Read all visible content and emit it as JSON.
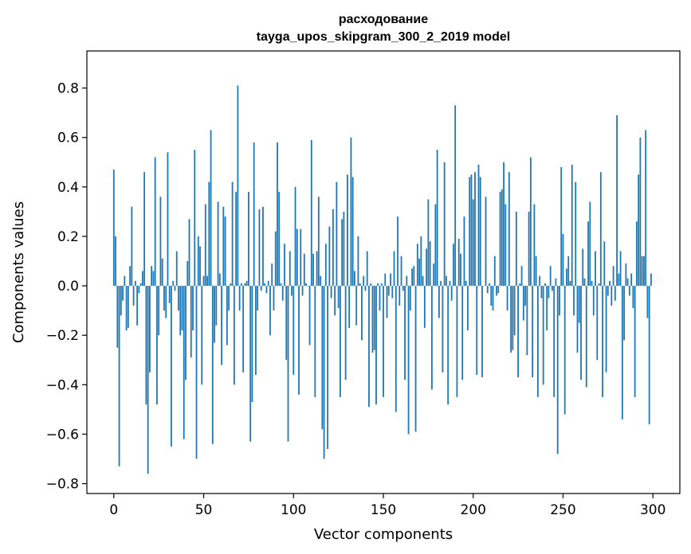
{
  "chart_data": {
    "type": "bar",
    "title_lines": [
      "расходование",
      "tayga_upos_skipgram_300_2_2019 model"
    ],
    "xlabel": "Vector components",
    "ylabel": "Components values",
    "xlim": [
      -15,
      315
    ],
    "ylim": [
      -0.84,
      0.95
    ],
    "x_ticks": [
      0,
      50,
      100,
      150,
      200,
      250,
      300
    ],
    "x_tick_labels": [
      "0",
      "50",
      "100",
      "150",
      "200",
      "250",
      "300"
    ],
    "y_ticks": [
      -0.8,
      -0.6,
      -0.4,
      -0.2,
      0.0,
      0.2,
      0.4,
      0.6,
      0.8
    ],
    "y_tick_labels": [
      "−0.8",
      "−0.6",
      "−0.4",
      "−0.2",
      "0.0",
      "0.2",
      "0.4",
      "0.6",
      "0.8"
    ],
    "bar_color": "#1f77b4",
    "grid": false,
    "values": [
      0.47,
      0.2,
      -0.25,
      -0.73,
      -0.12,
      -0.06,
      0.04,
      -0.18,
      -0.17,
      0.08,
      0.32,
      -0.08,
      0.02,
      -0.16,
      -0.03,
      0.01,
      0.06,
      0.46,
      -0.48,
      -0.76,
      -0.35,
      0.08,
      0.06,
      0.52,
      -0.48,
      -0.2,
      0.36,
      0.11,
      -0.1,
      -0.13,
      0.54,
      -0.07,
      -0.65,
      0.02,
      -0.02,
      0.14,
      -0.1,
      -0.2,
      -0.18,
      -0.62,
      -0.38,
      0.1,
      0.27,
      -0.29,
      -0.18,
      0.55,
      -0.7,
      0.2,
      0.16,
      -0.4,
      0.04,
      0.33,
      0.04,
      0.42,
      0.63,
      -0.64,
      -0.23,
      -0.16,
      0.34,
      0.05,
      -0.32,
      0.32,
      0.28,
      -0.24,
      -0.1,
      0.01,
      0.42,
      -0.4,
      0.38,
      0.81,
      -0.1,
      0.01,
      -0.35,
      0.01,
      0.02,
      0.38,
      -0.63,
      -0.47,
      0.58,
      -0.36,
      -0.1,
      0.31,
      -0.02,
      0.32,
      0.01,
      -0.03,
      0.02,
      -0.2,
      0.09,
      -0.1,
      0.22,
      0.58,
      0.38,
      0.01,
      -0.06,
      0.17,
      -0.3,
      -0.63,
      0.14,
      -0.04,
      -0.36,
      0.4,
      0.23,
      -0.44,
      0.23,
      -0.04,
      0.13,
      0.01,
      0.0,
      -0.24,
      0.59,
      0.13,
      -0.45,
      0.14,
      0.36,
      0.04,
      -0.58,
      -0.7,
      0.17,
      -0.66,
      0.24,
      -0.05,
      0.31,
      -0.12,
      0.42,
      -0.09,
      -0.45,
      0.27,
      0.3,
      -0.38,
      0.45,
      -0.17,
      0.6,
      0.44,
      0.06,
      -0.16,
      0.2,
      0.01,
      -0.22,
      0.04,
      -0.02,
      0.14,
      -0.49,
      0.01,
      -0.27,
      -0.26,
      -0.48,
      0.01,
      -0.1,
      0.01,
      -0.45,
      0.05,
      -0.13,
      -0.04,
      0.05,
      -0.05,
      0.14,
      -0.51,
      0.28,
      -0.08,
      0.12,
      -0.02,
      -0.38,
      0.04,
      -0.6,
      -0.1,
      0.07,
      0.08,
      -0.59,
      0.17,
      0.11,
      0.2,
      0.04,
      -0.17,
      0.15,
      0.35,
      0.18,
      -0.42,
      0.09,
      0.33,
      0.55,
      -0.13,
      0.02,
      -0.35,
      0.5,
      0.04,
      -0.48,
      0.02,
      -0.06,
      0.17,
      0.73,
      -0.45,
      0.19,
      0.13,
      -0.38,
      0.28,
      0.02,
      -0.18,
      0.44,
      0.45,
      0.35,
      0.46,
      -0.36,
      0.49,
      0.44,
      -0.37,
      0.0,
      0.36,
      -0.03,
      0.01,
      -0.08,
      -0.1,
      0.12,
      -0.04,
      -0.03,
      0.38,
      0.39,
      0.5,
      0.33,
      -0.1,
      0.46,
      -0.27,
      -0.26,
      -0.2,
      0.3,
      -0.37,
      0.01,
      0.08,
      -0.14,
      -0.08,
      -0.28,
      0.3,
      0.52,
      -0.37,
      0.33,
      0.12,
      -0.45,
      0.04,
      -0.05,
      -0.4,
      0.01,
      -0.18,
      -0.05,
      0.08,
      -0.02,
      -0.45,
      0.03,
      -0.68,
      -0.12,
      0.48,
      0.21,
      -0.52,
      0.07,
      0.12,
      0.02,
      0.49,
      -0.12,
      0.42,
      -0.27,
      -0.15,
      -0.38,
      0.15,
      0.03,
      -0.41,
      0.26,
      0.34,
      0.02,
      -0.12,
      0.14,
      -0.3,
      0.01,
      0.46,
      -0.45,
      0.18,
      -0.35,
      -0.04,
      0.02,
      -0.08,
      0.08,
      -0.06,
      0.69,
      0.05,
      0.14,
      -0.54,
      -0.22,
      0.09,
      0.03,
      -0.04,
      0.05,
      -0.09,
      -0.45,
      0.26,
      0.45,
      0.6,
      0.12,
      0.12,
      0.63,
      -0.13,
      -0.56,
      0.05
    ]
  }
}
